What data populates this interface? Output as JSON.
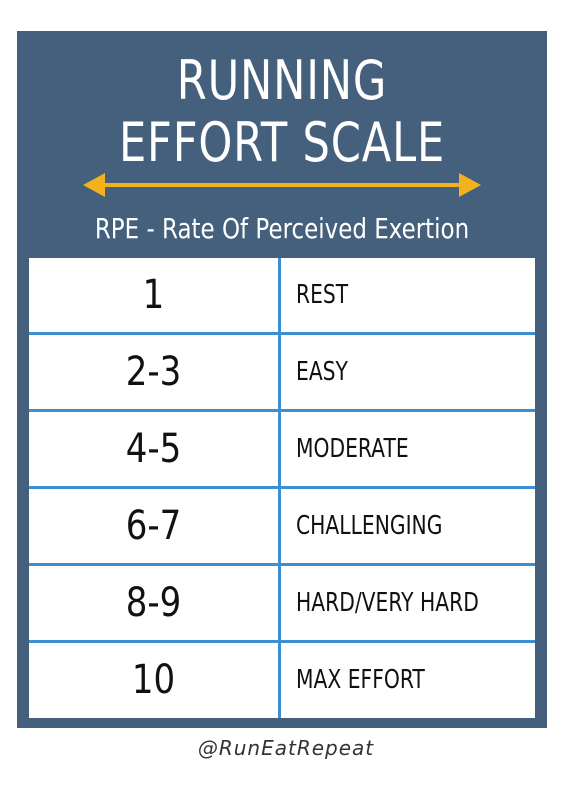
{
  "header": {
    "title_line1": "RUNNING",
    "title_line2": "EFFORT SCALE",
    "subtitle": "RPE - Rate Of Perceived Exertion",
    "arrow_color": "#f2b21b"
  },
  "colors": {
    "panel": "#45607c",
    "grid_lines": "#3d8fd1"
  },
  "table": {
    "rows": [
      {
        "rpe": "1",
        "description": "REST"
      },
      {
        "rpe": "2-3",
        "description": "EASY"
      },
      {
        "rpe": "4-5",
        "description": "MODERATE"
      },
      {
        "rpe": "6-7",
        "description": "CHALLENGING"
      },
      {
        "rpe": "8-9",
        "description": "HARD/VERY HARD"
      },
      {
        "rpe": "10",
        "description": "MAX EFFORT"
      }
    ]
  },
  "footer": {
    "handle": "@RunEatRepeat"
  }
}
